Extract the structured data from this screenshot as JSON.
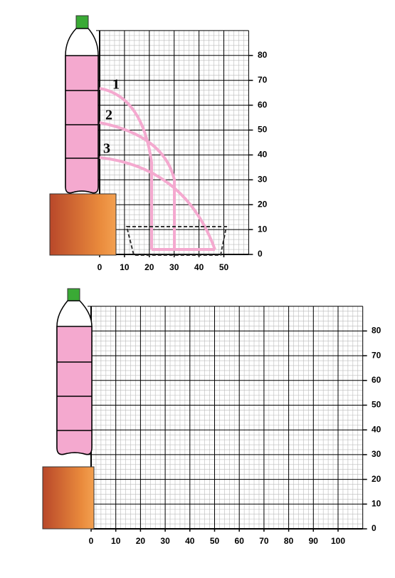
{
  "top_panel": {
    "y_ticks": [
      0,
      10,
      20,
      30,
      40,
      50,
      60,
      70,
      80
    ],
    "x_ticks": [
      0,
      10,
      20,
      30,
      40,
      50
    ],
    "jet_labels": [
      "1",
      "2",
      "3"
    ]
  },
  "bottom_panel": {
    "y_ticks": [
      0,
      10,
      20,
      30,
      40,
      50,
      60,
      70,
      80
    ],
    "x_ticks": [
      0,
      10,
      20,
      30,
      40,
      50,
      60,
      70,
      80,
      90,
      100
    ]
  }
}
